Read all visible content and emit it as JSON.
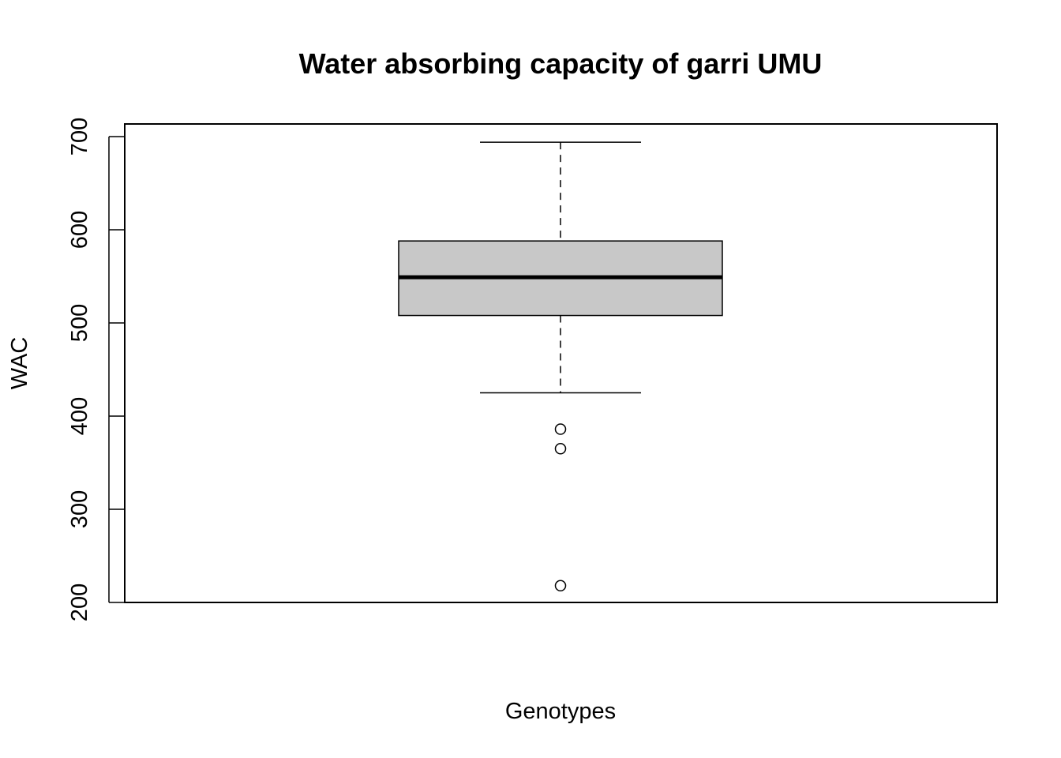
{
  "chart_data": {
    "type": "box",
    "title": "Water absorbing capacity of garri UMU",
    "xlabel": "Genotypes",
    "ylabel": "WAC",
    "ylim": [
      195,
      710
    ],
    "yticks": [
      200,
      300,
      400,
      500,
      600,
      700
    ],
    "ytick_labels": [
      "200",
      "300",
      "400",
      "500",
      "600",
      "700"
    ],
    "grid": false,
    "legend": "none",
    "box": {
      "whisker_low": 425,
      "q1": 508,
      "median": 549,
      "q3": 588,
      "whisker_high": 694,
      "outliers": [
        386,
        365,
        218
      ]
    },
    "colors": {
      "box_fill": "#c8c8c8",
      "stroke": "#000000"
    }
  }
}
